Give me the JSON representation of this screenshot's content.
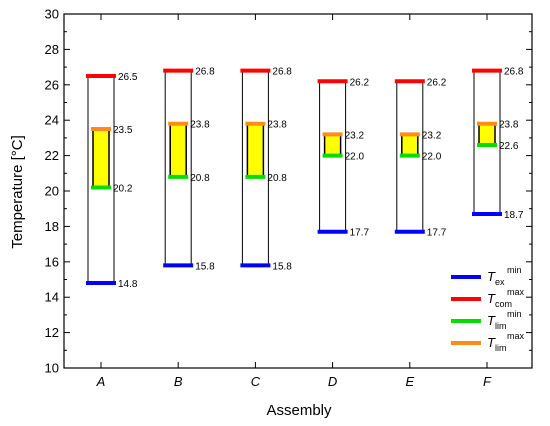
{
  "chart_data": {
    "type": "range",
    "xlabel": "Assembly",
    "ylabel": "Temperature [°C]",
    "ylim": [
      10,
      30
    ],
    "yticks": [
      10,
      12,
      14,
      16,
      18,
      20,
      22,
      24,
      26,
      28,
      30
    ],
    "categories": [
      "A",
      "B",
      "C",
      "D",
      "E",
      "F"
    ],
    "series": [
      {
        "key": "T_ex_min",
        "symbol": "T",
        "sub": "ex",
        "sup": "min",
        "color": "#0000ff",
        "values": [
          14.8,
          15.8,
          15.8,
          17.7,
          17.7,
          18.7
        ]
      },
      {
        "key": "T_com_max",
        "symbol": "T",
        "sub": "com",
        "sup": "max",
        "color": "#ff0000",
        "values": [
          26.5,
          26.8,
          26.8,
          26.2,
          26.2,
          26.8
        ]
      },
      {
        "key": "T_lim_min",
        "symbol": "T",
        "sub": "lim",
        "sup": "min",
        "color": "#00dd00",
        "values": [
          20.2,
          20.8,
          20.8,
          22.0,
          22.0,
          22.6
        ]
      },
      {
        "key": "T_lim_max",
        "symbol": "T",
        "sub": "lim",
        "sup": "max",
        "color": "#ff8c1a",
        "values": [
          23.5,
          23.8,
          23.8,
          23.2,
          23.2,
          23.8
        ]
      }
    ],
    "value_labels": {
      "T_ex_min": [
        "14.8",
        "15.8",
        "15.8",
        "17.7",
        "17.7",
        "18.7"
      ],
      "T_com_max": [
        "26.5",
        "26.8",
        "26.8",
        "26.2",
        "26.2",
        "26.8"
      ],
      "T_lim_min": [
        "20.2",
        "20.8",
        "20.8",
        "22.0",
        "22.0",
        "22.6"
      ],
      "T_lim_max": [
        "23.5",
        "23.8",
        "23.8",
        "23.2",
        "23.2",
        "23.8"
      ]
    },
    "comfort_band_color": "#ffff00",
    "legend_position": "bottom-right",
    "grid": false
  }
}
